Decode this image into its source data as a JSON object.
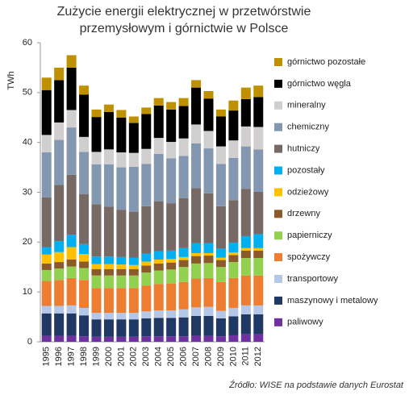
{
  "chart_data": {
    "type": "stacked-bar",
    "title": [
      "Zużycie energii elektrycznej w przetwórstwie",
      "przemysłowym i górnictwie w Polsce"
    ],
    "y_label": "TWh",
    "source": "Źródło: WISE na podstawie danych Eurostat",
    "categories": [
      "1995",
      "1996",
      "1997",
      "1998",
      "1999",
      "2000",
      "2001",
      "2002",
      "2003",
      "2004",
      "2005",
      "2006",
      "2007",
      "2008",
      "2009",
      "2010",
      "2011",
      "2012"
    ],
    "ylim": [
      0,
      60
    ],
    "yticks": [
      0,
      10,
      20,
      30,
      40,
      50,
      60
    ],
    "series": [
      {
        "name": "paliwowy",
        "color": "#7030a0",
        "values": [
          1.2,
          1.2,
          1.2,
          1.1,
          1,
          1,
          1,
          1,
          1.1,
          1.1,
          1.1,
          1.1,
          1.2,
          1.2,
          1.1,
          1.3,
          1.5,
          1.5
        ]
      },
      {
        "name": "maszynowy i metalowy",
        "color": "#203864",
        "values": [
          4.5,
          4.5,
          4.5,
          4.2,
          3.5,
          3.5,
          3.5,
          3.5,
          3.6,
          3.7,
          3.7,
          3.8,
          4,
          4,
          3.6,
          3.8,
          4,
          4
        ]
      },
      {
        "name": "transportowy",
        "color": "#b4c7e7",
        "values": [
          1.5,
          1.5,
          1.6,
          1.5,
          1.3,
          1.3,
          1.3,
          1.3,
          1.4,
          1.5,
          1.5,
          1.6,
          1.7,
          1.8,
          1.5,
          1.7,
          1.8,
          1.8
        ]
      },
      {
        "name": "spożywczy",
        "color": "#ed7d31",
        "values": [
          5,
          5.2,
          5.5,
          5.5,
          5,
          5,
          5,
          5,
          5.2,
          5.3,
          5.4,
          5.5,
          5.8,
          5.8,
          5.8,
          6,
          6,
          6
        ]
      },
      {
        "name": "papierniczy",
        "color": "#92d050",
        "values": [
          2.2,
          2.3,
          2.3,
          2.5,
          2.5,
          2.5,
          2.5,
          2.5,
          2.6,
          2.7,
          2.8,
          3,
          3,
          3,
          3,
          3.2,
          3.5,
          3.5
        ]
      },
      {
        "name": "drzewny",
        "color": "#8b5a2b",
        "values": [
          1.3,
          1.3,
          1.4,
          1.3,
          1.3,
          1.3,
          1.3,
          1.3,
          1.4,
          1.4,
          1.4,
          1.4,
          1.5,
          1.5,
          1.4,
          1.4,
          1.5,
          1.5
        ]
      },
      {
        "name": "odzieżowy",
        "color": "#ffc000",
        "values": [
          1.8,
          2,
          2.5,
          1.5,
          1,
          1,
          0.9,
          0.8,
          0.8,
          0.8,
          0.7,
          0.6,
          0.6,
          0.5,
          0.5,
          0.5,
          0.5,
          0.5
        ]
      },
      {
        "name": "pozostały",
        "color": "#00b0f0",
        "values": [
          1.5,
          2.2,
          2.5,
          2,
          1.5,
          1.5,
          1.5,
          1.5,
          1.6,
          1.7,
          1.7,
          1.8,
          2,
          2,
          1.8,
          2,
          2.4,
          2.8
        ]
      },
      {
        "name": "hutniczy",
        "color": "#776963",
        "values": [
          10,
          11.3,
          12,
          10,
          10.5,
          10,
          9.5,
          9.2,
          9.5,
          10,
          9.5,
          10,
          11,
          10,
          8.5,
          8.5,
          9.5,
          8.5
        ]
      },
      {
        "name": "chemiczny",
        "color": "#8497b0",
        "values": [
          9,
          9,
          9.5,
          8.5,
          8,
          8.5,
          8.5,
          9,
          8.5,
          9.5,
          9,
          8.5,
          9,
          9,
          8.5,
          8.5,
          8.5,
          8.5
        ]
      },
      {
        "name": "mineralny",
        "color": "#d0cece",
        "values": [
          3.5,
          3.5,
          3.5,
          3,
          2.5,
          3,
          3,
          2.8,
          3,
          3.2,
          3.3,
          3.5,
          3.8,
          3.5,
          3.5,
          3.5,
          4,
          4.5
        ]
      },
      {
        "name": "górnictwo węgla",
        "color": "#000000",
        "values": [
          9,
          8.5,
          8.5,
          8.5,
          7,
          7.5,
          7,
          6,
          7,
          6.5,
          6.5,
          6.5,
          7.4,
          6.5,
          6,
          6,
          5.5,
          6
        ]
      },
      {
        "name": "górnictwo pozostałe",
        "color": "#bf9000",
        "values": [
          2.5,
          2.5,
          2.5,
          1.8,
          1.5,
          1.5,
          1.5,
          1.3,
          1.3,
          1.5,
          1.5,
          1.6,
          1.5,
          1.5,
          1.4,
          2,
          2.3,
          2.3
        ]
      }
    ]
  }
}
